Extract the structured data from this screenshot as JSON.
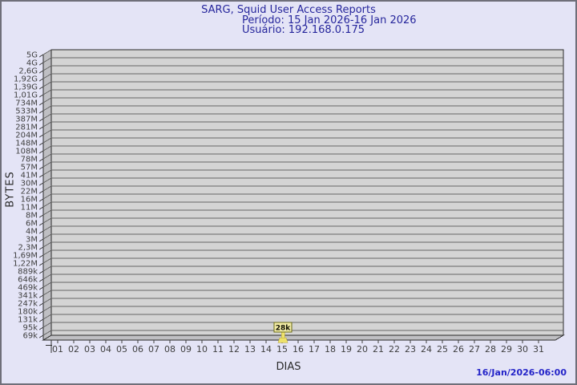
{
  "header": {
    "title": "SARG, Squid User Access Reports",
    "period": "Período: 15 Jan 2026-16 Jan 2026",
    "user": "Usuário: 192.168.0.175"
  },
  "footer": {
    "timestamp": "16/Jan/2026-06:00"
  },
  "chart_data": {
    "type": "bar",
    "title": "SARG, Squid User Access Reports",
    "subtitle_period": "Período: 15 Jan 2026-16 Jan 2026",
    "subtitle_user": "Usuário: 192.168.0.175",
    "xlabel": "DIAS",
    "ylabel": "BYTES",
    "scale": "logarithmic",
    "grid": true,
    "y_ticks": [
      "5G",
      "4G",
      "2,6G",
      "1,92G",
      "1,39G",
      "1,01G",
      "734M",
      "533M",
      "387M",
      "281M",
      "204M",
      "148M",
      "108M",
      "78M",
      "57M",
      "41M",
      "30M",
      "22M",
      "16M",
      "11M",
      "8M",
      "6M",
      "4M",
      "3M",
      "2,3M",
      "1,69M",
      "1,22M",
      "889k",
      "646k",
      "469k",
      "341k",
      "247k",
      "180k",
      "131k",
      "95k",
      "69k"
    ],
    "x_ticks": [
      "01",
      "02",
      "03",
      "04",
      "05",
      "06",
      "07",
      "08",
      "09",
      "10",
      "11",
      "12",
      "13",
      "14",
      "15",
      "16",
      "17",
      "18",
      "19",
      "20",
      "21",
      "22",
      "23",
      "24",
      "25",
      "26",
      "27",
      "28",
      "29",
      "30",
      "31"
    ],
    "bars": [
      {
        "day": "15",
        "label": "28k"
      }
    ]
  },
  "colors": {
    "page_bg": "#e4e4f6",
    "frame_border": "#6f6f79",
    "plot_bg": "#d4d4d4",
    "wall_fill": "#bfbfc3",
    "grid_line": "#666666",
    "plot_border": "#2a2a2a",
    "axis_text": "#3f3f3f",
    "title_text": "#26269c",
    "timestamp_text": "#2323c8",
    "bar_fill": "#eee26a",
    "bar_stroke": "#b3a135",
    "bar_label_bg": "#f2eca6",
    "bar_label_border": "#6a6a14",
    "bar_label_text": "#101000"
  }
}
